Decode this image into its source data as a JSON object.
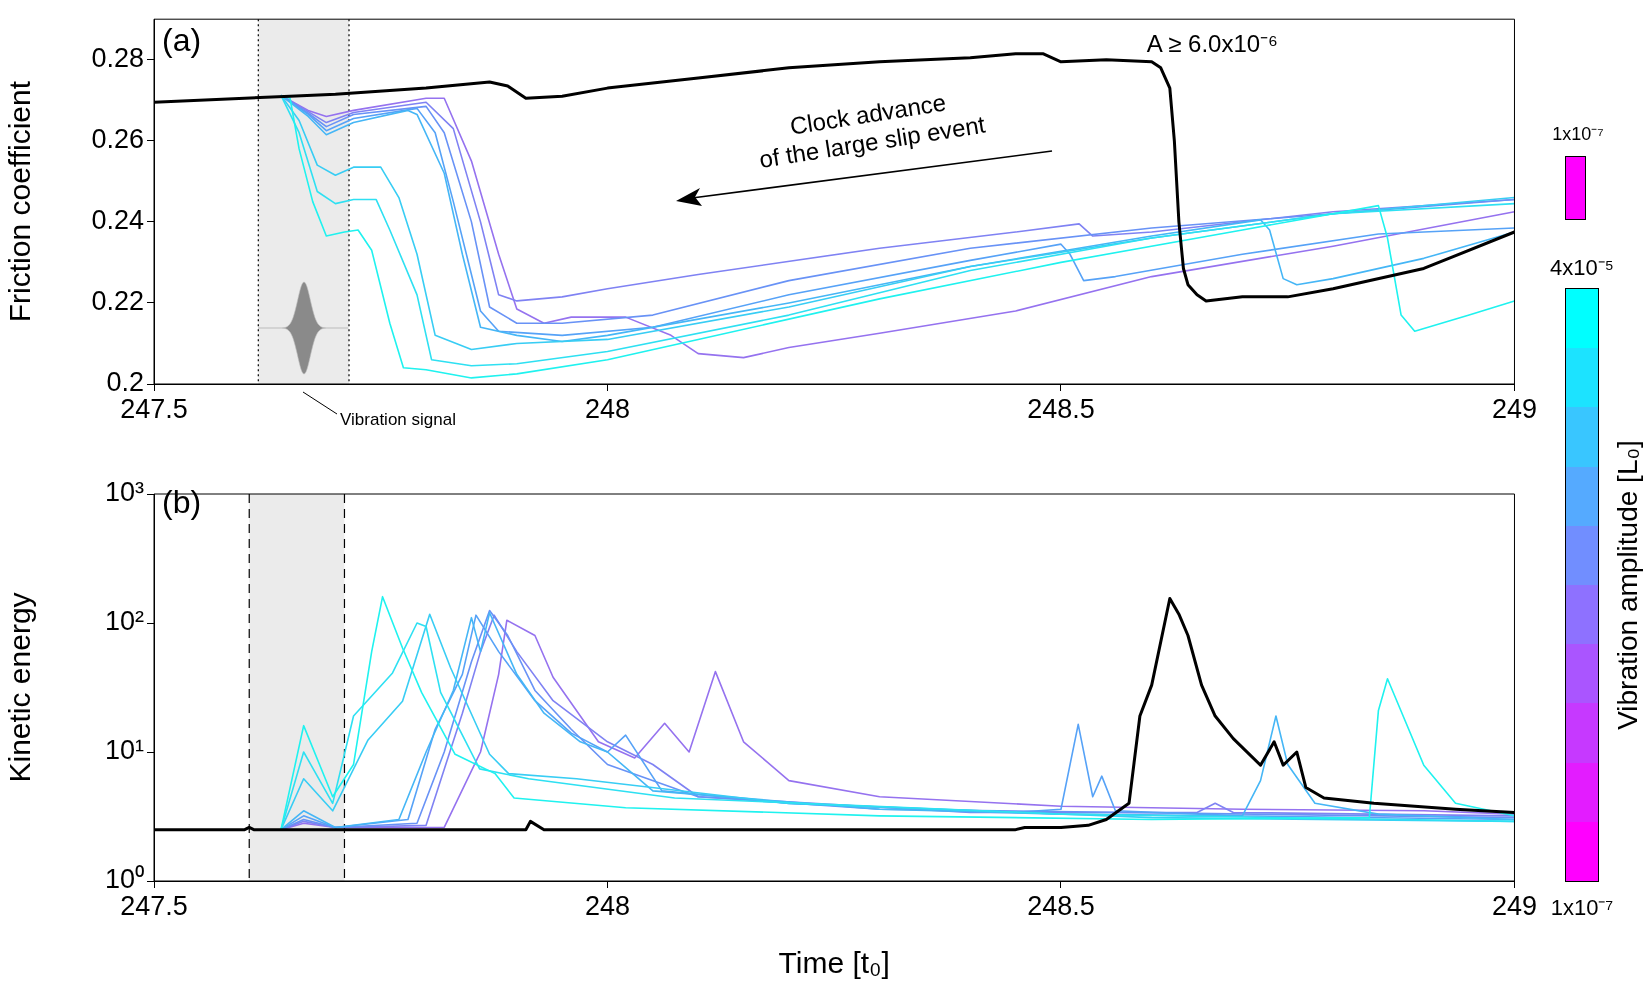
{
  "chart_data": [
    {
      "type": "line",
      "ylabel": "Friction coefficient",
      "xlim": [
        247.5,
        249
      ],
      "xticks": [
        247.5,
        248,
        248.5,
        249
      ],
      "ylim": [
        0.2,
        0.29
      ],
      "yticks": [
        0.2,
        0.22,
        0.24,
        0.26,
        0.28
      ],
      "annotations": [
        "(a)",
        "A ≥ 6.0x10⁻⁶",
        "Clock advance\nof the large slip event",
        "Vibration signal",
        "1x10⁻⁷"
      ],
      "bands": [
        {
          "axis": "x",
          "from": 247.615,
          "to": 247.715,
          "color": "#ebebeb"
        }
      ],
      "ref_lines": [
        {
          "axis": "x",
          "value": 247.615,
          "line_style": "dotted"
        },
        {
          "axis": "x",
          "value": 247.715,
          "line_style": "dotted"
        }
      ],
      "series": [
        {
          "color": "#1ff2ef",
          "x": [
            247.64,
            247.65,
            247.66,
            247.675,
            247.69,
            247.71,
            247.725,
            247.74,
            247.76,
            247.775,
            247.8,
            247.85,
            247.9,
            248.0,
            248.1,
            248.3,
            248.5,
            248.7,
            248.85,
            248.86,
            248.875,
            248.89,
            248.95,
            249
          ],
          "values": [
            0.2712,
            0.2705,
            0.258,
            0.245,
            0.2365,
            0.2375,
            0.238,
            0.233,
            0.215,
            0.204,
            0.2035,
            0.2015,
            0.2025,
            0.206,
            0.211,
            0.221,
            0.23,
            0.238,
            0.244,
            0.236,
            0.217,
            0.213,
            0.217,
            0.2205
          ]
        },
        {
          "color": "#2ee0f2",
          "x": [
            247.64,
            247.66,
            247.68,
            247.7,
            247.72,
            247.745,
            247.76,
            247.79,
            247.806,
            247.85,
            247.9,
            248.0,
            248.2,
            248.4,
            248.6,
            248.8,
            249
          ],
          "values": [
            0.2712,
            0.262,
            0.2475,
            0.2445,
            0.2455,
            0.2455,
            0.238,
            0.222,
            0.206,
            0.2045,
            0.205,
            0.208,
            0.217,
            0.228,
            0.236,
            0.242,
            0.2445
          ]
        },
        {
          "color": "#38cdf4",
          "x": [
            247.64,
            247.66,
            247.68,
            247.7,
            247.72,
            247.75,
            247.77,
            247.79,
            247.81,
            247.85,
            247.9,
            248.0,
            248.2,
            248.4,
            248.6,
            248.8,
            249
          ],
          "values": [
            0.2712,
            0.265,
            0.254,
            0.2515,
            0.2535,
            0.2535,
            0.246,
            0.232,
            0.212,
            0.2085,
            0.21,
            0.211,
            0.219,
            0.229,
            0.236,
            0.242,
            0.246
          ]
        },
        {
          "color": "#45b6f6",
          "x": [
            247.64,
            247.67,
            247.69,
            247.72,
            247.78,
            247.79,
            247.82,
            247.84,
            247.86,
            247.9,
            247.95,
            248.0,
            248.2,
            248.4,
            248.6,
            248.72,
            248.73,
            248.745,
            248.76,
            248.8,
            248.9,
            249
          ],
          "values": [
            0.2712,
            0.266,
            0.2615,
            0.2645,
            0.2675,
            0.2665,
            0.252,
            0.232,
            0.214,
            0.212,
            0.2105,
            0.212,
            0.22,
            0.229,
            0.2365,
            0.2405,
            0.238,
            0.226,
            0.2245,
            0.226,
            0.231,
            0.2375
          ]
        },
        {
          "color": "#56a2f7",
          "x": [
            247.64,
            247.67,
            247.69,
            247.72,
            247.79,
            247.81,
            247.83,
            247.86,
            247.88,
            247.95,
            248.05,
            248.2,
            248.4,
            248.5,
            248.51,
            248.525,
            248.56,
            248.7,
            248.85,
            249
          ],
          "values": [
            0.2712,
            0.2665,
            0.2625,
            0.2655,
            0.268,
            0.262,
            0.245,
            0.218,
            0.213,
            0.212,
            0.214,
            0.222,
            0.2305,
            0.2345,
            0.232,
            0.2255,
            0.2265,
            0.232,
            0.237,
            0.2385
          ]
        },
        {
          "color": "#6892f6",
          "x": [
            247.64,
            247.67,
            247.69,
            247.72,
            247.8,
            247.82,
            247.85,
            247.87,
            247.9,
            247.95,
            248.05,
            248.2,
            248.4,
            248.6,
            248.8,
            249
          ],
          "values": [
            0.2712,
            0.2668,
            0.2635,
            0.2665,
            0.2685,
            0.262,
            0.24,
            0.219,
            0.215,
            0.215,
            0.217,
            0.2255,
            0.2335,
            0.2385,
            0.242,
            0.2455
          ]
        },
        {
          "color": "#7f82f3",
          "x": [
            247.64,
            247.67,
            247.69,
            247.72,
            247.8,
            247.83,
            247.86,
            247.88,
            247.9,
            247.95,
            248.0,
            248.1,
            248.3,
            248.45,
            248.52,
            248.535,
            248.6,
            248.8,
            249
          ],
          "values": [
            0.2712,
            0.2672,
            0.2645,
            0.267,
            0.2695,
            0.263,
            0.24,
            0.222,
            0.2205,
            0.2215,
            0.2235,
            0.227,
            0.2335,
            0.2375,
            0.2395,
            0.2365,
            0.2375,
            0.2425,
            0.2455
          ]
        },
        {
          "color": "#9572ef",
          "x": [
            247.64,
            247.67,
            247.69,
            247.72,
            247.8,
            247.82,
            247.85,
            247.88,
            247.9,
            247.93,
            247.96,
            248.02,
            248.07,
            248.1,
            248.15,
            248.2,
            248.3,
            248.45,
            248.6,
            248.8,
            249
          ],
          "values": [
            0.2712,
            0.2675,
            0.266,
            0.2675,
            0.2705,
            0.2705,
            0.255,
            0.232,
            0.2185,
            0.215,
            0.2165,
            0.2165,
            0.212,
            0.2075,
            0.2065,
            0.209,
            0.2125,
            0.218,
            0.2265,
            0.234,
            0.2425
          ]
        },
        {
          "color": "#000000",
          "x": [
            247.5,
            247.6,
            247.65,
            247.7,
            247.8,
            247.87,
            247.89,
            247.91,
            247.95,
            248.0,
            248.1,
            248.2,
            248.3,
            248.4,
            248.45,
            248.48,
            248.5,
            248.55,
            248.6,
            248.61,
            248.62,
            248.625,
            248.63,
            248.635,
            248.64,
            248.65,
            248.66,
            248.7,
            248.75,
            248.8,
            248.9,
            249
          ],
          "values": [
            0.2695,
            0.2705,
            0.271,
            0.2715,
            0.273,
            0.2745,
            0.2735,
            0.2705,
            0.271,
            0.273,
            0.2755,
            0.278,
            0.2795,
            0.2805,
            0.2815,
            0.2815,
            0.2795,
            0.28,
            0.2795,
            0.278,
            0.273,
            0.26,
            0.24,
            0.2285,
            0.2245,
            0.222,
            0.2205,
            0.2215,
            0.2215,
            0.2235,
            0.2285,
            0.2375
          ]
        }
      ]
    },
    {
      "type": "line",
      "xlabel": "Time [t₀]",
      "ylabel": "Kinetic energy",
      "log": true,
      "xlim": [
        247.5,
        249
      ],
      "xticks": [
        247.5,
        248,
        248.5,
        249
      ],
      "ylim": [
        1,
        1000
      ],
      "yticks": [
        {
          "value": 1,
          "label": "10⁰"
        },
        {
          "value": 10,
          "label": "10¹"
        },
        {
          "value": 100,
          "label": "10²"
        },
        {
          "value": 1000,
          "label": "10³"
        }
      ],
      "clabel": "Vibration amplitude [L₀]",
      "annotations": [
        "(b)",
        "4x10⁻⁵",
        "1x10⁻⁷"
      ],
      "bands": [
        {
          "axis": "x",
          "from": 247.605,
          "to": 247.71,
          "color": "#ebebeb"
        }
      ],
      "ref_lines": [
        {
          "axis": "x",
          "value": 247.605,
          "line_style": "dashed"
        },
        {
          "axis": "x",
          "value": 247.71,
          "line_style": "dashed"
        }
      ],
      "series": [
        {
          "color": "#1ff2ef",
          "x": [
            247.64,
            247.665,
            247.697,
            247.72,
            247.74,
            247.752,
            247.774,
            247.795,
            247.832,
            247.876,
            247.897,
            248.02,
            248.3,
            248.6,
            248.84,
            248.85,
            248.86,
            248.9,
            248.935,
            249
          ],
          "values": [
            2.5,
            16,
            4.5,
            8,
            60,
            160,
            64,
            29,
            9.6,
            6.8,
            4.4,
            3.7,
            3.2,
            3.0,
            3.1,
            21,
            37,
            7.9,
            4,
            3.2
          ]
        },
        {
          "color": "#2ee0f2",
          "x": [
            247.64,
            247.665,
            247.697,
            247.72,
            247.763,
            247.79,
            247.8,
            247.816,
            247.859,
            247.913,
            248.074,
            248.5,
            249
          ],
          "values": [
            2.5,
            10,
            4,
            19,
            41,
            100,
            94,
            29,
            7.4,
            6.2,
            4.4,
            3.3,
            2.9
          ]
        },
        {
          "color": "#38cdf4",
          "x": [
            247.64,
            247.665,
            247.697,
            247.736,
            247.774,
            247.804,
            247.827,
            247.87,
            247.891,
            247.966,
            248.2,
            248.6,
            249
          ],
          "values": [
            2.5,
            6.2,
            3.5,
            12.4,
            24.7,
            117,
            45,
            9.6,
            6.8,
            6.2,
            4,
            3.1,
            2.9
          ]
        },
        {
          "color": "#45b6f6",
          "x": [
            247.64,
            247.665,
            247.7,
            247.77,
            247.8,
            247.83,
            247.85,
            247.86,
            247.87,
            247.9,
            247.93,
            247.97,
            248.0,
            248.05,
            248.3,
            248.5,
            248.7,
            248.72,
            248.737,
            248.75,
            248.78,
            248.85,
            249
          ],
          "values": [
            2.5,
            3.5,
            2.6,
            3,
            10,
            30,
            110,
            60,
            120,
            40,
            20,
            12,
            10,
            5,
            3.6,
            3.3,
            3.2,
            6,
            19,
            8,
            4,
            3.3,
            3.0
          ]
        },
        {
          "color": "#56a2f7",
          "x": [
            247.64,
            247.665,
            247.7,
            247.78,
            247.81,
            247.84,
            247.855,
            247.88,
            247.92,
            247.96,
            248.0,
            248.02,
            248.06,
            248.2,
            248.45,
            248.5,
            248.519,
            248.535,
            248.545,
            248.56,
            248.7,
            249
          ],
          "values": [
            2.5,
            3.2,
            2.6,
            3,
            15,
            40,
            115,
            60,
            25,
            14,
            10,
            13.5,
            5,
            4,
            3.4,
            3.6,
            16.4,
            4.5,
            6.5,
            3.5,
            3.2,
            3.0
          ]
        },
        {
          "color": "#6892f6",
          "x": [
            247.64,
            247.665,
            247.7,
            247.79,
            247.82,
            247.85,
            247.87,
            247.89,
            247.92,
            247.96,
            248.0,
            248.1,
            248.3,
            249
          ],
          "values": [
            2.5,
            3.0,
            2.6,
            2.8,
            10,
            50,
            125,
            80,
            30,
            15,
            8,
            4.5,
            3.6,
            3.1
          ]
        },
        {
          "color": "#7f82f3",
          "x": [
            247.64,
            247.665,
            247.7,
            247.8,
            247.84,
            247.86,
            247.875,
            247.9,
            247.94,
            248.0,
            248.05,
            248.1,
            248.4,
            248.65,
            248.67,
            248.69,
            249
          ],
          "values": [
            2.5,
            2.9,
            2.6,
            2.7,
            20,
            60,
            115,
            60,
            25,
            12,
            8,
            4.5,
            3.4,
            3.4,
            4,
            3.4,
            3.2
          ]
        },
        {
          "color": "#9572ef",
          "x": [
            247.64,
            247.665,
            247.7,
            247.82,
            247.86,
            247.88,
            247.889,
            247.92,
            247.94,
            247.99,
            248.03,
            248.063,
            248.09,
            248.119,
            248.15,
            248.2,
            248.3,
            248.5,
            248.7,
            248.9,
            249
          ],
          "values": [
            2.5,
            2.8,
            2.6,
            2.6,
            10,
            40,
            105,
            80,
            38,
            12,
            9,
            16.7,
            10,
            42,
            12,
            6,
            4.5,
            3.8,
            3.6,
            3.5,
            3.3
          ]
        },
        {
          "color": "#000000",
          "x": [
            247.5,
            247.6,
            247.605,
            247.61,
            247.91,
            247.915,
            247.93,
            248.45,
            248.46,
            248.5,
            248.53,
            248.55,
            248.575,
            248.587,
            248.6,
            248.62,
            248.63,
            248.64,
            248.655,
            248.67,
            248.69,
            248.72,
            248.735,
            248.745,
            248.76,
            248.77,
            248.79,
            248.845,
            248.935,
            249
          ],
          "values": [
            2.5,
            2.5,
            2.6,
            2.5,
            2.5,
            2.9,
            2.5,
            2.5,
            2.6,
            2.6,
            2.7,
            3.0,
            4,
            19,
            33,
            155,
            117,
            80,
            33,
            19,
            12.7,
            7.9,
            12,
            7.9,
            10,
            5.3,
            4.4,
            4.0,
            3.6,
            3.4
          ]
        }
      ]
    }
  ]
}
